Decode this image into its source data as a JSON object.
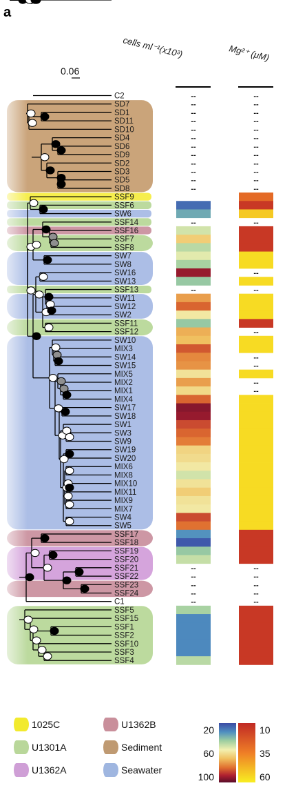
{
  "panel_label": "a",
  "scale_bar_label": "0.06",
  "column_headers": {
    "cells": "cells ml⁻¹(x10³)",
    "mg": "Mg²⁺ (μM)"
  },
  "missing_marker": "--",
  "leaves": [
    "C2",
    "SD7",
    "SD1",
    "SD11",
    "SD10",
    "SD4",
    "SD6",
    "SD9",
    "SD2",
    "SD3",
    "SD5",
    "SD8",
    "SSF9",
    "SSF6",
    "SW6",
    "SSF14",
    "SSF16",
    "SSF7",
    "SSF8",
    "SW7",
    "SW8",
    "SW16",
    "SW13",
    "SSF13",
    "SW11",
    "SW12",
    "SW2",
    "SSF11",
    "SSF12",
    "SW10",
    "MIX3",
    "SW14",
    "SW15",
    "MIX5",
    "MIX2",
    "MIX1",
    "MIX4",
    "SW17",
    "SW18",
    "SW1",
    "SW3",
    "SW9",
    "SW19",
    "SW20",
    "MIX6",
    "MIX8",
    "MIX10",
    "MIX11",
    "MIX9",
    "MIX7",
    "SW4",
    "SW5",
    "SSF17",
    "SSF18",
    "SSF19",
    "SSF20",
    "SSF21",
    "SSF22",
    "SSF23",
    "SSF24",
    "C1",
    "SSF5",
    "SSF15",
    "SSF1",
    "SSF2",
    "SSF10",
    "SSF3",
    "SSF4"
  ],
  "leaf_group": {
    "C2": "",
    "SD7": "Sediment",
    "SD1": "Sediment",
    "SD11": "Sediment",
    "SD10": "Sediment",
    "SD4": "Sediment",
    "SD6": "Sediment",
    "SD9": "Sediment",
    "SD2": "Sediment",
    "SD3": "Sediment",
    "SD5": "Sediment",
    "SD8": "Sediment",
    "SSF9": "1025C",
    "SSF6": "U1301A",
    "SW6": "Seawater",
    "SSF14": "U1301A",
    "SSF16": "U1362B",
    "SSF7": "U1301A",
    "SSF8": "U1301A",
    "SW7": "Seawater",
    "SW8": "Seawater",
    "SW16": "Seawater",
    "SW13": "Seawater",
    "SSF13": "U1301A",
    "SW11": "Seawater",
    "SW12": "Seawater",
    "SW2": "Seawater",
    "SSF11": "U1301A",
    "SSF12": "U1301A",
    "SW10": "Seawater",
    "MIX3": "Seawater",
    "SW14": "Seawater",
    "SW15": "Seawater",
    "MIX5": "Seawater",
    "MIX2": "Seawater",
    "MIX1": "Seawater",
    "MIX4": "Seawater",
    "SW17": "Seawater",
    "SW18": "Seawater",
    "SW1": "Seawater",
    "SW3": "Seawater",
    "SW9": "Seawater",
    "SW19": "Seawater",
    "SW20": "Seawater",
    "MIX6": "Seawater",
    "MIX8": "Seawater",
    "MIX10": "Seawater",
    "MIX11": "Seawater",
    "MIX9": "Seawater",
    "MIX7": "Seawater",
    "SW4": "Seawater",
    "SW5": "Seawater",
    "SSF17": "U1362B",
    "SSF18": "U1362B",
    "SSF19": "U1362A",
    "SSF20": "U1362A",
    "SSF21": "U1362A",
    "SSF22": "U1362A",
    "SSF23": "U1362B",
    "SSF24": "U1362B",
    "C1": "",
    "SSF5": "U1301A",
    "SSF15": "U1301A",
    "SSF1": "U1301A",
    "SSF2": "U1301A",
    "SSF10": "U1301A",
    "SSF3": "U1301A",
    "SSF4": "U1301A"
  },
  "cells_x10e3": {
    "SSF6": 22,
    "SW6": 35,
    "SSF16": 52,
    "SSF7": 68,
    "SSF8": 48,
    "SW7": 55,
    "SW8": 45,
    "SW16": 102,
    "SW13": 42,
    "SW11": 78,
    "SW12": 88,
    "SW2": 60,
    "SSF11": 42,
    "SSF12": 75,
    "SW10": 72,
    "MIX3": 90,
    "SW14": 82,
    "SW15": 80,
    "MIX5": 62,
    "MIX2": 78,
    "MIX1": 65,
    "MIX4": 88,
    "SW17": 104,
    "SW18": 102,
    "SW1": 92,
    "SW3": 88,
    "SW9": 84,
    "SW19": 66,
    "SW20": 64,
    "MIX6": 60,
    "MIX8": 52,
    "MIX10": 62,
    "MIX11": 68,
    "MIX9": 62,
    "MIX7": 60,
    "SW4": 92,
    "SW5": 86,
    "SSF17": 30,
    "SSF18": 18,
    "SSF19": 42,
    "SSF20": 50,
    "SSF5": 45,
    "SSF15": 28,
    "SSF1": 28,
    "SSF2": 28,
    "SSF10": 28,
    "SSF3": 28,
    "SSF4": 48
  },
  "mg_uM": {
    "SSF9": 28,
    "SSF6": 10,
    "SW6": 55,
    "SSF16": 10,
    "SSF7": 10,
    "SSF8": 10,
    "SW7": 60,
    "SW8": 60,
    "SW13": 60,
    "SW11": 60,
    "SW12": 60,
    "SW2": 60,
    "SSF11": 10,
    "SW10": 60,
    "MIX3": 60,
    "MIX5": 60,
    "MIX4": 60,
    "SW17": 60,
    "SW18": 60,
    "SW1": 60,
    "SW3": 60,
    "SW9": 60,
    "SW19": 60,
    "SW20": 60,
    "MIX6": 60,
    "MIX8": 60,
    "MIX10": 60,
    "MIX11": 60,
    "MIX9": 60,
    "MIX7": 60,
    "SW4": 60,
    "SW5": 60,
    "SSF17": 10,
    "SSF18": 10,
    "SSF19": 10,
    "SSF20": 10,
    "SSF5": 10,
    "SSF15": 10,
    "SSF1": 10,
    "SSF2": 10,
    "SSF10": 10,
    "SSF3": 10,
    "SSF4": 10
  },
  "cells_missing": [
    "C2",
    "SD7",
    "SD1",
    "SD11",
    "SD10",
    "SD4",
    "SD6",
    "SD9",
    "SD2",
    "SD3",
    "SD5",
    "SD8",
    "SSF14",
    "SSF13",
    "SSF21",
    "SSF22",
    "SSF23",
    "SSF24",
    "C1"
  ],
  "mg_missing": [
    "C2",
    "SD7",
    "SD1",
    "SD11",
    "SD10",
    "SD4",
    "SD6",
    "SD9",
    "SD2",
    "SD3",
    "SD5",
    "SD8",
    "SSF14",
    "SW16",
    "SSF13",
    "SSF12",
    "SW14",
    "SW15",
    "MIX2",
    "MIX1",
    "SSF21",
    "SSF22",
    "SSF23",
    "SSF24",
    "C1"
  ],
  "legend": [
    {
      "label": "1025C",
      "color": "#f2ea2e"
    },
    {
      "label": "U1362B",
      "color": "#c98f9b"
    },
    {
      "label": "U1301A",
      "color": "#b9d79a"
    },
    {
      "label": "Sediment",
      "color": "#bf9a72"
    },
    {
      "label": "U1362A",
      "color": "#cf9fd6"
    },
    {
      "label": "Seawater",
      "color": "#9fb6e0"
    }
  ],
  "cells_scale": {
    "ticks": [
      "20",
      "60",
      "100"
    ],
    "min": 15,
    "max": 110
  },
  "mg_scale": {
    "ticks": [
      "10",
      "35",
      "60"
    ],
    "min": 5,
    "max": 65
  },
  "group_colors": {
    "Sediment": "#c49a6c",
    "1025C": "#f5ec3a",
    "U1301A": "#b5d694",
    "Seawater": "#9db3e2",
    "U1362A": "#d09ad8",
    "U1362B": "#c88c9a"
  },
  "node_colors": {
    "black": "#000000",
    "white": "#ffffff",
    "gray": "#8f8f8f"
  }
}
